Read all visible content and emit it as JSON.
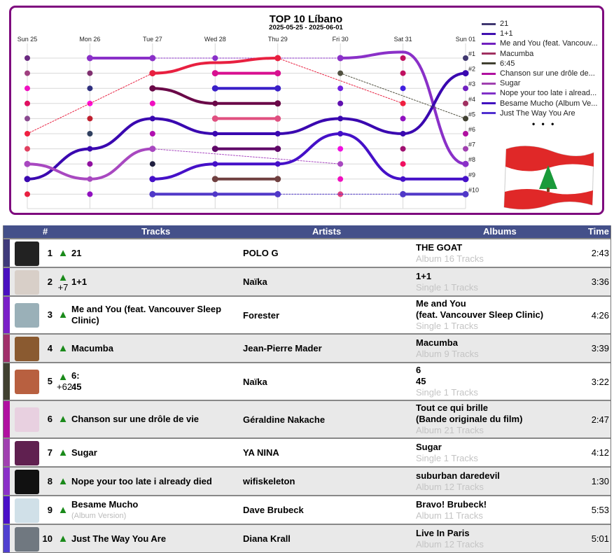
{
  "chart": {
    "title": "TOP 10 Líbano",
    "subtitle": "2025-05-25 - 2025-06-01",
    "legend_more": "• • •",
    "flag_icon": "lebanon-flag",
    "border_color": "#7e0a7e"
  },
  "chart_data": {
    "type": "line",
    "title": "TOP 10 Líbano",
    "subtitle": "2025-05-25 - 2025-06-01",
    "categories": [
      "Sun 25",
      "Mon 26",
      "Tue 27",
      "Wed 28",
      "Thu 29",
      "Fri 30",
      "Sat 31",
      "Sun 01"
    ],
    "rank_labels": [
      "#1",
      "#2",
      "#3",
      "#4",
      "#5",
      "#6",
      "#7",
      "#8",
      "#9",
      "#10"
    ],
    "y_axis": "rank, 1 at top",
    "grid": true,
    "legend_placement": "right",
    "legend": [
      {
        "name": "21",
        "color": "#403870"
      },
      {
        "name": "1+1",
        "color": "#4010b0"
      },
      {
        "name": "Me and You (feat. Vancouv...",
        "color": "#7020c0"
      },
      {
        "name": "Macumba",
        "color": "#a03060"
      },
      {
        "name": "6:45",
        "color": "#404030"
      },
      {
        "name": "Chanson sur une drôle de...",
        "color": "#b010a0"
      },
      {
        "name": "Sugar",
        "color": "#a040b0"
      },
      {
        "name": "Nope your too late i alread...",
        "color": "#8030c8"
      },
      {
        "name": "Besame Mucho (Album Ve...",
        "color": "#4010c0"
      },
      {
        "name": "Just The Way You Are",
        "color": "#5030d0"
      }
    ],
    "series": [
      {
        "color": "#8a30c8",
        "segments": [
          {
            "style": "solid",
            "points": [
              [
                "Mon 26",
                1
              ],
              [
                "Tue 27",
                1
              ]
            ]
          },
          {
            "style": "dotted",
            "points": [
              [
                "Tue 27",
                1
              ],
              [
                "Fri 30",
                1
              ]
            ]
          },
          {
            "style": "solid",
            "points": [
              [
                "Fri 30",
                1
              ],
              [
                "Sat 31",
                0.6
              ],
              [
                "Sun 01",
                8
              ]
            ]
          }
        ]
      },
      {
        "color": "#e82040",
        "segments": [
          {
            "style": "dotted",
            "points": [
              [
                "Sun 25",
                6
              ],
              [
                "Tue 27",
                2
              ]
            ]
          },
          {
            "style": "solid",
            "points": [
              [
                "Tue 27",
                2
              ],
              [
                "Wed 28",
                1.3
              ],
              [
                "Thu 29",
                1
              ]
            ]
          },
          {
            "style": "dotted",
            "points": [
              [
                "Thu 29",
                1
              ],
              [
                "Sat 31",
                4
              ]
            ]
          }
        ]
      },
      {
        "color": "#d81090",
        "segments": [
          {
            "style": "solid",
            "points": [
              [
                "Wed 28",
                2
              ],
              [
                "Thu 29",
                2
              ]
            ]
          }
        ]
      },
      {
        "color": "#3a20c8",
        "segments": [
          {
            "style": "solid",
            "points": [
              [
                "Wed 28",
                3
              ],
              [
                "Thu 29",
                3
              ]
            ]
          }
        ]
      },
      {
        "color": "#6a0848",
        "segments": [
          {
            "style": "solid",
            "points": [
              [
                "Tue 27",
                3
              ],
              [
                "Wed 28",
                4
              ],
              [
                "Thu 29",
                4
              ]
            ]
          }
        ]
      },
      {
        "color": "#e05080",
        "segments": [
          {
            "style": "solid",
            "points": [
              [
                "Wed 28",
                5
              ],
              [
                "Thu 29",
                5
              ]
            ]
          }
        ]
      },
      {
        "color": "#3a08b0",
        "segments": [
          {
            "style": "solid",
            "points": [
              [
                "Sun 25",
                9
              ],
              [
                "Mon 26",
                7
              ],
              [
                "Tue 27",
                5
              ],
              [
                "Wed 28",
                6
              ],
              [
                "Thu 29",
                6
              ],
              [
                "Fri 30",
                5
              ],
              [
                "Sat 31",
                6
              ],
              [
                "Sun 01",
                2
              ]
            ]
          }
        ]
      },
      {
        "color": "#a848c0",
        "segments": [
          {
            "style": "solid",
            "points": [
              [
                "Sun 25",
                8
              ],
              [
                "Mon 26",
                9
              ],
              [
                "Tue 27",
                7
              ]
            ]
          },
          {
            "style": "dotted",
            "points": [
              [
                "Tue 27",
                7
              ],
              [
                "Fri 30",
                8
              ]
            ]
          }
        ]
      },
      {
        "color": "#600868",
        "segments": [
          {
            "style": "solid",
            "points": [
              [
                "Wed 28",
                7
              ],
              [
                "Thu 29",
                7
              ]
            ]
          }
        ]
      },
      {
        "color": "#4510c8",
        "segments": [
          {
            "style": "solid",
            "points": [
              [
                "Tue 27",
                9
              ],
              [
                "Wed 28",
                8
              ],
              [
                "Thu 29",
                8
              ],
              [
                "Fri 30",
                6
              ],
              [
                "Sat 31",
                9
              ],
              [
                "Sun 01",
                9
              ]
            ]
          }
        ]
      },
      {
        "color": "#704040",
        "segments": [
          {
            "style": "solid",
            "points": [
              [
                "Wed 28",
                9
              ],
              [
                "Thu 29",
                9
              ]
            ]
          }
        ]
      },
      {
        "color": "#5038c8",
        "segments": [
          {
            "style": "solid",
            "points": [
              [
                "Tue 27",
                10
              ],
              [
                "Thu 29",
                10
              ]
            ]
          },
          {
            "style": "dotted",
            "points": [
              [
                "Thu 29",
                10
              ],
              [
                "Sat 31",
                10
              ]
            ]
          },
          {
            "style": "solid",
            "points": [
              [
                "Sat 31",
                10
              ],
              [
                "Sun 01",
                10
              ]
            ]
          }
        ]
      },
      {
        "color": "#505040",
        "segments": [
          {
            "style": "dotted",
            "points": [
              [
                "Fri 30",
                2
              ],
              [
                "Sun 01",
                5
              ]
            ]
          }
        ]
      }
    ],
    "dots": [
      [
        "#6a2a80",
        "#a04080",
        "#f010c0",
        "#e01060",
        "#8a4a90",
        "#f02040",
        "#e04060",
        "#a848c0",
        "#3a08b0",
        "#e82040"
      ],
      [
        "#9040c0",
        "#803070",
        "#303080",
        "#ff10e0",
        "#c02030",
        "#304060",
        "#3a08b0",
        "#9010a0",
        "#a848c0",
        "#9010c0"
      ],
      [
        "#9040c0",
        "#e82040",
        "#6a0848",
        "#f010c0",
        "#3a08b0",
        "#b010b0",
        "#a848c0",
        "#202040",
        "#4510c8",
        "#5038c8"
      ],
      [
        "#8a30c8",
        "#d81090",
        "#3a20c8",
        "#6a0848",
        "#e05080",
        "#3a08b0",
        "#600868",
        "#4510c8",
        "#704040",
        "#5038c8"
      ],
      [
        "#e82040",
        "#d81090",
        "#3a20c8",
        "#6a0848",
        "#e05080",
        "#3a08b0",
        "#600868",
        "#4510c8",
        "#704040",
        "#5038c8"
      ],
      [
        "#8a30c8",
        "#505040",
        "#7020e0",
        "#6010b0",
        "#3a08b0",
        "#4510c8",
        "#f010e0",
        "#a848c0",
        "#f010c0",
        "#e04080"
      ],
      [
        "#c01060",
        "#c01060",
        "#4020e0",
        "#f02040",
        "#9010c0",
        "#3a08b0",
        "#a01070",
        "#f01060",
        "#4510c8",
        "#5038c8"
      ],
      [
        "#403870",
        "#4010b0",
        "#7020c0",
        "#a03060",
        "#404030",
        "#b010a0",
        "#a040b0",
        "#8030c8",
        "#4010c0",
        "#5030d0"
      ]
    ]
  },
  "table": {
    "header": {
      "rank": "#",
      "tracks": "Tracks",
      "artists": "Artists",
      "albums": "Albums",
      "time": "Time"
    },
    "rows": [
      {
        "rank": "1",
        "trend": "up",
        "trend_icon": "▲",
        "change": "",
        "title": "21",
        "subtitle": "",
        "artist": "POLO G",
        "album_lines": [
          "THE GOAT"
        ],
        "album_meta": "Album 16 Tracks",
        "time": "2:43",
        "color": "#3f3a7a",
        "thumb": "#222"
      },
      {
        "rank": "2",
        "trend": "up",
        "trend_icon": "▲",
        "change": "+7",
        "title": "1+1",
        "subtitle": "",
        "artist": "Naïka",
        "album_lines": [
          "1+1"
        ],
        "album_meta": "Single 1 Tracks",
        "time": "3:36",
        "color": "#4a10c0",
        "thumb": "#d8cfc8"
      },
      {
        "rank": "3",
        "trend": "up",
        "trend_icon": "▲",
        "change": "",
        "title": "Me and You (feat. Vancouver Sleep Clinic)",
        "subtitle": "",
        "artist": "Forester",
        "album_lines": [
          "Me and You",
          "(feat. Vancouver Sleep Clinic)"
        ],
        "album_meta": "Single 1 Tracks",
        "time": "4:26",
        "color": "#7a20c8",
        "thumb": "#9ab0b8"
      },
      {
        "rank": "4",
        "trend": "up",
        "trend_icon": "▲",
        "change": "",
        "title": "Macumba",
        "subtitle": "",
        "artist": "Jean-Pierre Mader",
        "album_lines": [
          "Macumba"
        ],
        "album_meta": "Album 9 Tracks",
        "time": "3:39",
        "color": "#a0306a",
        "thumb": "#8a5a30"
      },
      {
        "rank": "5",
        "trend": "up",
        "trend_icon": "▲",
        "change": "+62",
        "title": "6:\n45",
        "subtitle": "",
        "artist": "Naïka",
        "album_lines": [
          "6",
          "45"
        ],
        "album_meta": "Single 1 Tracks",
        "time": "3:22",
        "color": "#404030",
        "thumb": "#b86040"
      },
      {
        "rank": "6",
        "trend": "up",
        "trend_icon": "▲",
        "change": "",
        "title": "Chanson sur une drôle de vie",
        "subtitle": "",
        "artist": "Géraldine Nakache",
        "album_lines": [
          "Tout ce qui brille",
          "(Bande originale du film)"
        ],
        "album_meta": "Album 21 Tracks",
        "time": "2:47",
        "color": "#b010a0",
        "thumb": "#e8d0e0"
      },
      {
        "rank": "7",
        "trend": "up",
        "trend_icon": "▲",
        "change": "",
        "title": "Sugar",
        "subtitle": "",
        "artist": "YA NINA",
        "album_lines": [
          "Sugar"
        ],
        "album_meta": "Single 1 Tracks",
        "time": "4:12",
        "color": "#a040b0",
        "thumb": "#602050"
      },
      {
        "rank": "8",
        "trend": "up",
        "trend_icon": "▲",
        "change": "",
        "title": "Nope your too late i already died",
        "subtitle": "",
        "artist": "wifiskeleton",
        "album_lines": [
          "suburban daredevil"
        ],
        "album_meta": "Album 12 Tracks",
        "time": "1:30",
        "color": "#8a30c8",
        "thumb": "#111"
      },
      {
        "rank": "9",
        "trend": "up",
        "trend_icon": "▲",
        "change": "",
        "title": "Besame Mucho",
        "subtitle": "(Album Version)",
        "artist": "Dave Brubeck",
        "album_lines": [
          "Bravo! Brubeck!"
        ],
        "album_meta": "Album 11 Tracks",
        "time": "5:53",
        "color": "#4a10c8",
        "thumb": "#d0e0e8"
      },
      {
        "rank": "10",
        "trend": "up",
        "trend_icon": "▲",
        "change": "",
        "title": "Just The Way You Are",
        "subtitle": "",
        "artist": "Diana Krall",
        "album_lines": [
          "Live In Paris"
        ],
        "album_meta": "Album 12 Tracks",
        "time": "5:01",
        "color": "#5040d0",
        "thumb": "#707880"
      }
    ]
  }
}
